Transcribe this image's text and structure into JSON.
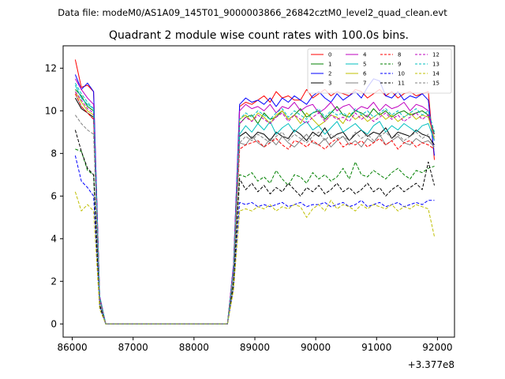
{
  "figure": {
    "suptitle": "Data file: modeM0/AS1A09_145T01_9000003866_26842cztM0_level2_quad_clean.evt",
    "title": "Quadrant 2 module wise count rates with 100.0s bins.",
    "offset_label": "+3.377e8"
  },
  "chart_data": {
    "type": "line",
    "title": "Quadrant 2 module wise count rates with 100.0s bins.",
    "xlabel": "",
    "ylabel": "",
    "x_offset": 337700000,
    "xlim": [
      85850,
      92280
    ],
    "ylim": [
      -0.62,
      13.05
    ],
    "xticks": [
      86000,
      87000,
      88000,
      89000,
      90000,
      91000,
      92000
    ],
    "yticks": [
      0,
      2,
      4,
      6,
      8,
      10,
      12
    ],
    "grid": false,
    "legend_position": "top-right",
    "x": [
      86050,
      86150,
      86250,
      86350,
      86450,
      86550,
      88550,
      88650,
      88750,
      88850,
      88950,
      89050,
      89150,
      89250,
      89350,
      89450,
      89550,
      89650,
      89750,
      89850,
      89950,
      90050,
      90150,
      90250,
      90350,
      90450,
      90550,
      90650,
      90750,
      90850,
      90950,
      91050,
      91150,
      91250,
      91350,
      91450,
      91550,
      91650,
      91750,
      91850,
      91950
    ],
    "series": [
      {
        "name": "0",
        "color": "#ff0000",
        "style": "solid",
        "values": [
          12.4,
          11.1,
          11.2,
          10.9,
          1.3,
          0,
          0,
          2.8,
          10.2,
          10.4,
          10.3,
          10.5,
          10.7,
          10.4,
          10.9,
          10.6,
          10.7,
          10.5,
          10.5,
          11.0,
          10.6,
          10.8,
          11.0,
          10.7,
          10.9,
          10.8,
          10.7,
          11.0,
          10.9,
          10.6,
          10.8,
          11.0,
          10.7,
          10.9,
          10.6,
          10.8,
          10.9,
          10.7,
          10.8,
          10.9,
          7.7
        ]
      },
      {
        "name": "1",
        "color": "#008000",
        "style": "solid",
        "values": [
          11.0,
          10.7,
          10.2,
          10.0,
          1.3,
          0,
          0,
          2.6,
          9.4,
          9.7,
          9.8,
          9.4,
          9.9,
          9.6,
          9.7,
          10.0,
          9.6,
          9.8,
          10.1,
          9.7,
          9.9,
          10.0,
          9.6,
          9.9,
          10.2,
          9.8,
          9.7,
          10.0,
          9.9,
          9.7,
          10.1,
          9.8,
          10.0,
          9.7,
          9.9,
          10.0,
          9.8,
          9.9,
          10.0,
          9.8,
          8.9
        ]
      },
      {
        "name": "2",
        "color": "#0000ff",
        "style": "solid",
        "values": [
          11.7,
          11.0,
          11.3,
          10.9,
          1.3,
          0,
          0,
          2.8,
          10.3,
          10.6,
          10.4,
          10.5,
          10.3,
          10.6,
          10.2,
          10.6,
          10.4,
          10.7,
          10.5,
          10.3,
          10.7,
          10.9,
          10.6,
          10.4,
          10.8,
          10.5,
          10.7,
          10.9,
          10.6,
          11.1,
          11.5,
          11.4,
          10.7,
          10.6,
          10.9,
          10.5,
          10.7,
          10.6,
          10.8,
          10.5,
          7.9
        ]
      },
      {
        "name": "3",
        "color": "#000000",
        "style": "solid",
        "values": [
          10.6,
          10.1,
          9.9,
          9.7,
          1.2,
          0,
          0,
          2.5,
          8.8,
          9.0,
          8.7,
          9.0,
          8.9,
          8.6,
          9.0,
          8.8,
          8.7,
          9.1,
          8.9,
          8.6,
          9.0,
          8.8,
          9.2,
          8.7,
          8.9,
          9.0,
          8.6,
          8.9,
          9.1,
          8.8,
          9.0,
          8.9,
          9.2,
          8.7,
          9.0,
          8.9,
          8.8,
          9.1,
          8.9,
          8.8,
          8.4
        ]
      },
      {
        "name": "4",
        "color": "#bf00bf",
        "style": "solid",
        "values": [
          11.5,
          11.0,
          10.6,
          10.3,
          1.3,
          0,
          0,
          2.7,
          10.0,
          10.3,
          10.1,
          10.2,
          10.0,
          10.3,
          9.9,
          10.2,
          10.1,
          10.4,
          10.0,
          10.2,
          10.3,
          9.9,
          10.1,
          10.4,
          10.0,
          10.2,
          10.3,
          10.0,
          10.2,
          10.1,
          10.4,
          10.0,
          10.3,
          10.1,
          10.2,
          10.4,
          10.0,
          10.3,
          10.2,
          10.0,
          8.6
        ]
      },
      {
        "name": "5",
        "color": "#00bfbf",
        "style": "solid",
        "values": [
          11.2,
          10.6,
          10.3,
          10.1,
          1.2,
          0,
          0,
          2.5,
          8.9,
          9.3,
          9.0,
          9.4,
          9.1,
          9.5,
          8.9,
          9.2,
          9.4,
          9.0,
          9.3,
          9.5,
          9.1,
          9.3,
          8.9,
          9.2,
          9.5,
          9.0,
          9.2,
          9.4,
          9.1,
          8.9,
          9.3,
          9.5,
          9.0,
          9.3,
          9.1,
          9.4,
          9.2,
          9.0,
          9.3,
          9.4,
          8.6
        ]
      },
      {
        "name": "6",
        "color": "#bfbf00",
        "style": "solid",
        "values": [
          10.9,
          10.4,
          10.0,
          9.8,
          1.2,
          0,
          0,
          2.6,
          9.6,
          9.8,
          9.5,
          9.9,
          9.7,
          9.4,
          9.8,
          10.0,
          9.6,
          9.8,
          9.4,
          9.9,
          9.6,
          9.3,
          9.5,
          9.8,
          9.7,
          9.4,
          9.9,
          9.6,
          9.8,
          9.5,
          9.7,
          9.9,
          9.6,
          9.8,
          9.5,
          9.7,
          9.9,
          9.6,
          9.8,
          9.7,
          8.7
        ]
      },
      {
        "name": "7",
        "color": "#808080",
        "style": "solid",
        "values": [
          10.8,
          10.2,
          9.9,
          9.6,
          1.2,
          0,
          0,
          2.5,
          8.5,
          8.4,
          8.8,
          8.5,
          8.3,
          8.7,
          8.4,
          8.8,
          8.5,
          8.3,
          8.6,
          8.9,
          8.5,
          8.4,
          8.7,
          8.3,
          8.6,
          8.8,
          8.4,
          8.6,
          8.3,
          8.7,
          8.5,
          8.9,
          8.4,
          8.6,
          8.8,
          8.5,
          8.4,
          8.7,
          8.5,
          8.6,
          8.3
        ]
      },
      {
        "name": "8",
        "color": "#ff0000",
        "style": "dashed",
        "values": [
          10.8,
          10.2,
          9.9,
          9.6,
          1.2,
          0,
          0,
          2.4,
          8.2,
          8.4,
          8.5,
          8.6,
          8.3,
          8.5,
          8.7,
          8.4,
          8.2,
          8.6,
          8.5,
          8.3,
          8.6,
          8.4,
          8.2,
          8.5,
          8.7,
          8.3,
          8.5,
          8.4,
          8.6,
          8.3,
          8.5,
          8.7,
          8.4,
          8.6,
          8.2,
          8.5,
          8.6,
          8.3,
          8.5,
          8.4,
          8.2
        ]
      },
      {
        "name": "9",
        "color": "#008000",
        "style": "dashed",
        "values": [
          8.2,
          8.1,
          7.2,
          7.0,
          0.9,
          0,
          0,
          2.0,
          7.0,
          6.9,
          7.1,
          6.7,
          6.9,
          6.6,
          7.2,
          6.8,
          6.5,
          7.0,
          6.9,
          6.6,
          7.1,
          6.8,
          7.0,
          6.7,
          6.9,
          7.3,
          6.8,
          7.6,
          7.0,
          6.9,
          7.2,
          7.0,
          6.8,
          7.1,
          7.3,
          7.0,
          6.8,
          7.2,
          7.1,
          7.3,
          7.4
        ]
      },
      {
        "name": "10",
        "color": "#0000ff",
        "style": "dashed",
        "values": [
          7.9,
          6.7,
          6.4,
          6.0,
          0.8,
          0,
          0,
          1.7,
          5.7,
          5.6,
          5.7,
          5.5,
          5.6,
          5.5,
          5.6,
          5.7,
          5.5,
          5.6,
          5.7,
          5.5,
          5.6,
          5.6,
          5.7,
          5.5,
          5.6,
          5.7,
          5.5,
          5.6,
          5.8,
          5.5,
          5.6,
          5.7,
          5.5,
          5.6,
          5.7,
          5.5,
          5.6,
          5.7,
          5.6,
          5.8,
          5.8
        ]
      },
      {
        "name": "11",
        "color": "#000000",
        "style": "dashed",
        "values": [
          9.1,
          8.1,
          7.3,
          7.0,
          0.9,
          0,
          0,
          1.9,
          6.8,
          6.3,
          6.6,
          6.2,
          6.5,
          6.1,
          6.4,
          6.2,
          6.6,
          6.3,
          6.0,
          6.4,
          6.2,
          6.5,
          6.1,
          6.3,
          6.6,
          6.2,
          6.4,
          6.1,
          6.3,
          6.6,
          6.2,
          6.4,
          6.0,
          6.3,
          6.5,
          6.2,
          6.4,
          6.6,
          6.3,
          7.6,
          6.5
        ]
      },
      {
        "name": "12",
        "color": "#bf00bf",
        "style": "dashed",
        "values": [
          10.9,
          10.5,
          10.1,
          9.9,
          1.2,
          0,
          0,
          2.6,
          9.4,
          9.7,
          9.5,
          9.8,
          9.6,
          9.4,
          9.7,
          9.9,
          9.5,
          9.8,
          9.6,
          9.4,
          9.7,
          9.9,
          9.5,
          9.8,
          9.6,
          9.7,
          9.5,
          9.9,
          9.6,
          9.8,
          9.5,
          9.7,
          9.9,
          9.6,
          9.8,
          9.5,
          9.7,
          9.9,
          9.6,
          9.8,
          8.8
        ]
      },
      {
        "name": "13",
        "color": "#00bfbf",
        "style": "dashed",
        "values": [
          11.3,
          10.8,
          10.4,
          10.1,
          1.3,
          0,
          0,
          2.6,
          9.6,
          9.9,
          9.7,
          10.0,
          9.8,
          9.6,
          9.9,
          10.1,
          9.7,
          10.0,
          9.8,
          9.6,
          9.9,
          10.1,
          9.7,
          10.0,
          9.8,
          9.9,
          9.7,
          10.1,
          9.8,
          10.0,
          9.7,
          9.9,
          10.1,
          9.8,
          10.0,
          9.7,
          9.9,
          10.1,
          9.8,
          10.0,
          9.0
        ]
      },
      {
        "name": "14",
        "color": "#bfbf00",
        "style": "dashed",
        "values": [
          6.2,
          5.3,
          5.6,
          5.3,
          0.7,
          0,
          0,
          1.6,
          5.3,
          5.4,
          5.3,
          5.5,
          5.4,
          5.6,
          5.3,
          5.5,
          5.4,
          5.6,
          5.5,
          5.0,
          5.4,
          5.6,
          5.3,
          5.8,
          5.4,
          5.6,
          5.5,
          5.3,
          5.6,
          5.4,
          5.6,
          5.5,
          5.4,
          5.6,
          5.3,
          5.5,
          5.4,
          5.6,
          5.5,
          5.4,
          4.1
        ]
      },
      {
        "name": "15",
        "color": "#808080",
        "style": "dashed",
        "values": [
          9.8,
          9.4,
          9.1,
          8.9,
          1.1,
          0,
          0,
          2.4,
          8.5,
          8.8,
          8.6,
          8.9,
          8.7,
          8.5,
          8.8,
          9.0,
          8.6,
          8.9,
          8.7,
          8.5,
          8.8,
          9.0,
          8.6,
          8.9,
          8.7,
          8.8,
          8.6,
          9.0,
          8.7,
          8.9,
          8.6,
          8.8,
          9.0,
          8.7,
          8.9,
          8.6,
          8.8,
          9.0,
          8.7,
          8.9,
          8.2
        ]
      }
    ]
  }
}
